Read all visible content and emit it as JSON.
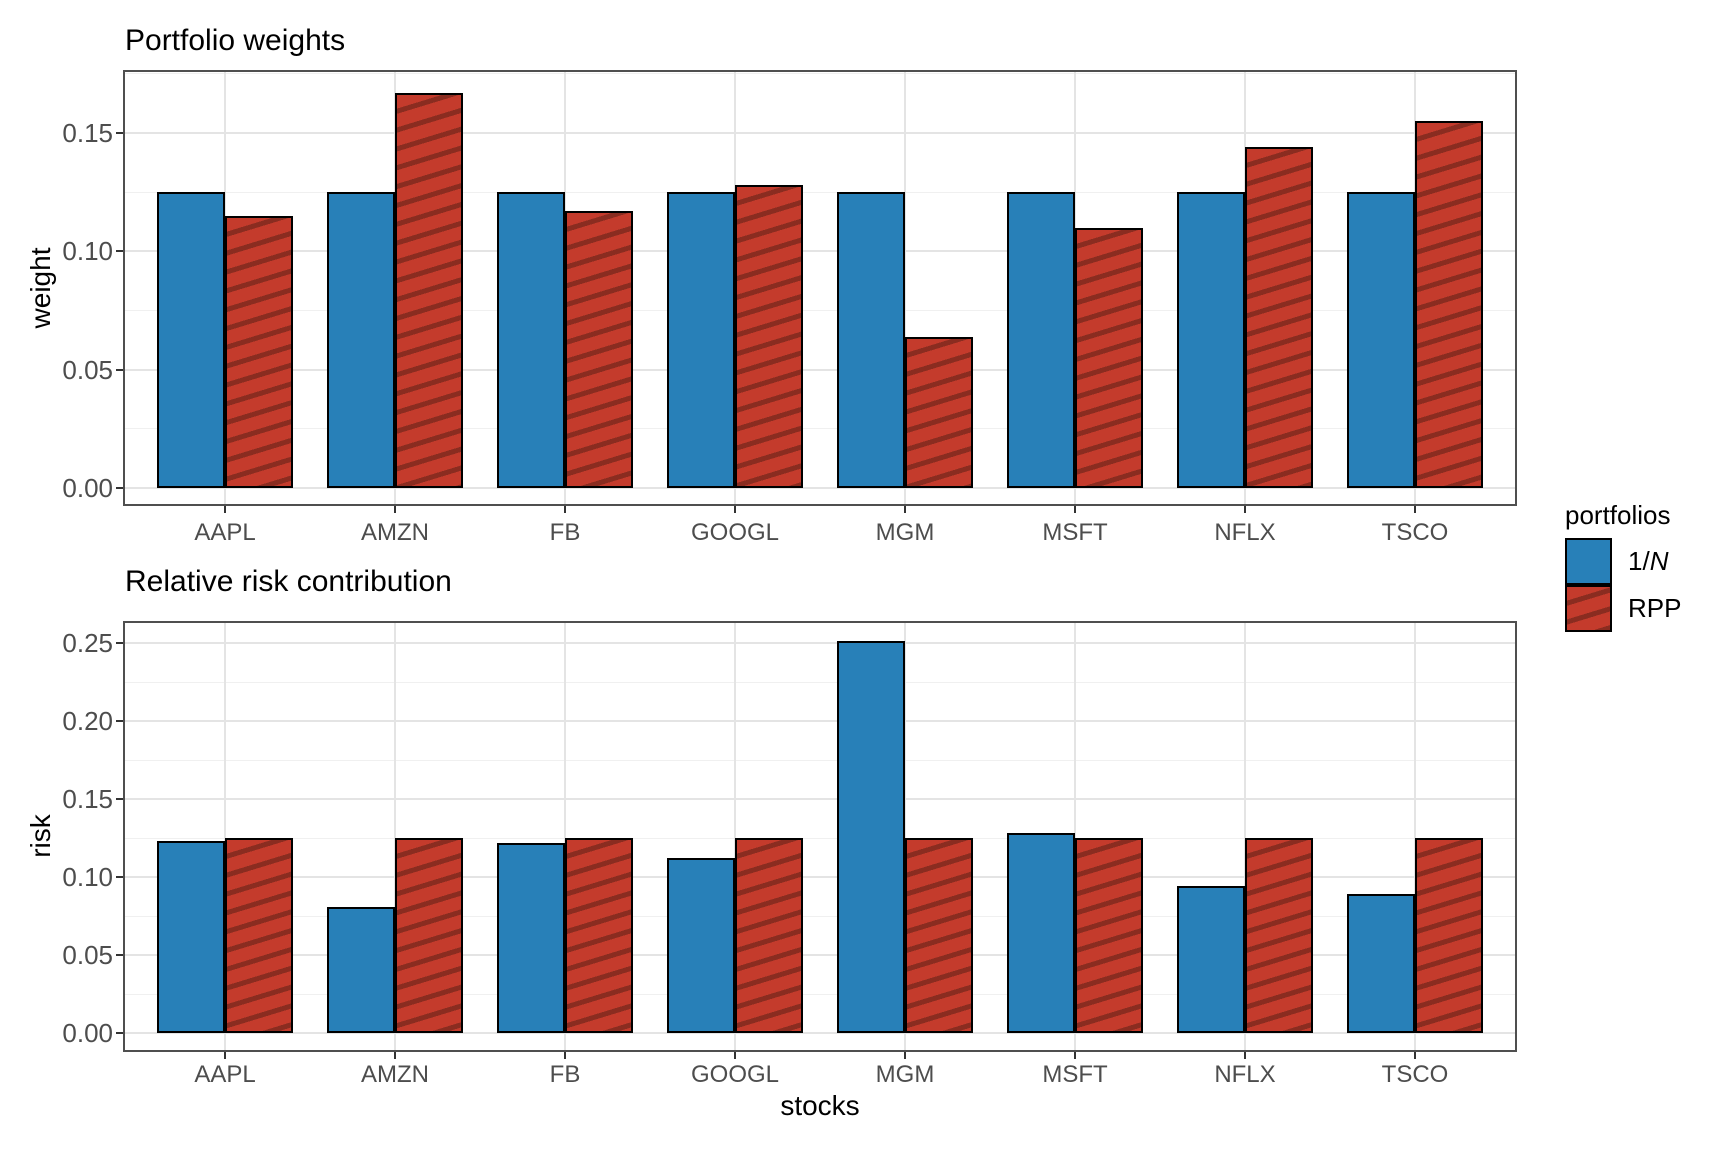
{
  "page": {
    "background": "#FFFFFF"
  },
  "colors": {
    "series_blue": "#2880B8",
    "series_red": "#C43B2C",
    "hatch_dark": "#8A2C20"
  },
  "legend": {
    "title": "portfolios",
    "items": [
      {
        "label_prefix": "1/",
        "label_italic": "N",
        "swatch": "blue-solid"
      },
      {
        "label": "RPP",
        "swatch": "red-hatched"
      }
    ]
  },
  "chart_data": [
    {
      "type": "bar",
      "title": "Portfolio weights",
      "xlabel": "",
      "ylabel": "weight",
      "categories": [
        "AAPL",
        "AMZN",
        "FB",
        "GOOGL",
        "MGM",
        "MSFT",
        "NFLX",
        "TSCO"
      ],
      "series": [
        {
          "name": "1/N",
          "color_key": "series_blue",
          "hatched": false,
          "values": [
            0.125,
            0.125,
            0.125,
            0.125,
            0.125,
            0.125,
            0.125,
            0.125
          ]
        },
        {
          "name": "RPP",
          "color_key": "series_red",
          "hatched": true,
          "values": [
            0.115,
            0.167,
            0.117,
            0.128,
            0.064,
            0.11,
            0.144,
            0.155
          ]
        }
      ],
      "ylim": [
        0,
        0.1766
      ],
      "yticks": [
        0,
        0.05,
        0.1,
        0.15
      ],
      "ytick_labels": [
        "0.00",
        "0.05",
        "0.10",
        "0.15"
      ],
      "yminor": [
        0.025,
        0.075,
        0.125,
        0.175
      ],
      "grid": true,
      "legend_position": "right"
    },
    {
      "type": "bar",
      "title": "Relative risk contribution",
      "xlabel": "stocks",
      "ylabel": "risk",
      "categories": [
        "AAPL",
        "AMZN",
        "FB",
        "GOOGL",
        "MGM",
        "MSFT",
        "NFLX",
        "TSCO"
      ],
      "series": [
        {
          "name": "1/N",
          "color_key": "series_blue",
          "hatched": false,
          "values": [
            0.123,
            0.081,
            0.122,
            0.112,
            0.251,
            0.128,
            0.094,
            0.089
          ]
        },
        {
          "name": "RPP",
          "color_key": "series_red",
          "hatched": true,
          "values": [
            0.125,
            0.125,
            0.125,
            0.125,
            0.125,
            0.125,
            0.125,
            0.125
          ]
        }
      ],
      "ylim": [
        0,
        0.264
      ],
      "yticks": [
        0,
        0.05,
        0.1,
        0.15,
        0.2,
        0.25
      ],
      "ytick_labels": [
        "0.00",
        "0.05",
        "0.10",
        "0.15",
        "0.20",
        "0.25"
      ],
      "yminor": [
        0.025,
        0.075,
        0.125,
        0.175,
        0.225
      ],
      "grid": true,
      "legend_position": "right"
    }
  ]
}
